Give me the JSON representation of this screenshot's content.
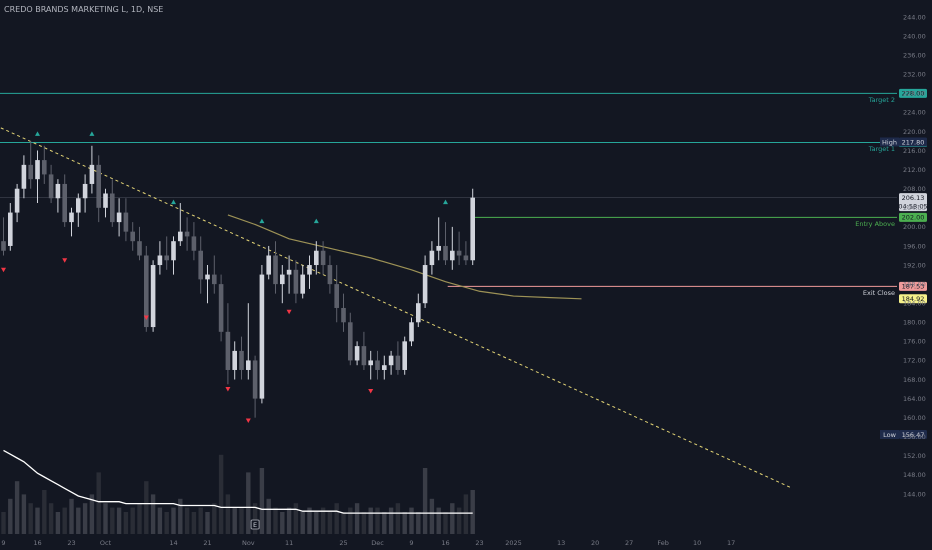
{
  "header": {
    "title": "CREDO BRANDS MARKETING L, 1D, NSE"
  },
  "colors": {
    "background": "#131722",
    "target": "#26a69a",
    "entry": "#4caf50",
    "exit": "#ef9a9a",
    "trend": "#e3d476",
    "ma": "#9d9256",
    "volume_ma": "#ffffff",
    "candle_up": "#d1d4dc",
    "candle_down": "#5d606b",
    "signal_up": "#26a69a",
    "signal_down": "#f23645"
  },
  "chart_data": {
    "type": "candlestick",
    "title": "CREDO BRANDS MARKETING L, 1D, NSE",
    "ylim": [
      142,
      246
    ],
    "y_ticks": [
      144,
      148,
      152,
      156,
      160,
      164,
      168,
      172,
      176,
      180,
      184,
      188,
      192,
      196,
      200,
      204,
      208,
      212,
      216,
      220,
      224,
      228,
      232,
      236,
      240,
      244
    ],
    "x_tick_labels": [
      {
        "i": 0,
        "label": "9"
      },
      {
        "i": 5,
        "label": "16"
      },
      {
        "i": 10,
        "label": "23"
      },
      {
        "i": 15,
        "label": "Oct"
      },
      {
        "i": 25,
        "label": "14"
      },
      {
        "i": 30,
        "label": "21"
      },
      {
        "i": 36,
        "label": "Nov"
      },
      {
        "i": 42,
        "label": "11"
      },
      {
        "i": 50,
        "label": "25"
      },
      {
        "i": 55,
        "label": "Dec"
      },
      {
        "i": 60,
        "label": "9"
      },
      {
        "i": 65,
        "label": "16"
      },
      {
        "i": 70,
        "label": "23"
      },
      {
        "i": 75,
        "label": "2025"
      },
      {
        "i": 82,
        "label": "13"
      },
      {
        "i": 87,
        "label": "20"
      },
      {
        "i": 92,
        "label": "27"
      },
      {
        "i": 97,
        "label": "Feb"
      },
      {
        "i": 102,
        "label": "10"
      },
      {
        "i": 107,
        "label": "17"
      }
    ],
    "candles": [
      {
        "o": 197,
        "h": 202,
        "l": 194,
        "c": 195
      },
      {
        "o": 196,
        "h": 205,
        "l": 195,
        "c": 203
      },
      {
        "o": 203,
        "h": 209,
        "l": 201,
        "c": 208
      },
      {
        "o": 208,
        "h": 215,
        "l": 206,
        "c": 213
      },
      {
        "o": 213,
        "h": 218,
        "l": 208,
        "c": 210
      },
      {
        "o": 210,
        "h": 216,
        "l": 205,
        "c": 214
      },
      {
        "o": 214,
        "h": 217,
        "l": 209,
        "c": 211
      },
      {
        "o": 211,
        "h": 213,
        "l": 205,
        "c": 206
      },
      {
        "o": 206,
        "h": 210,
        "l": 203,
        "c": 209
      },
      {
        "o": 209,
        "h": 211,
        "l": 200,
        "c": 201
      },
      {
        "o": 201,
        "h": 204,
        "l": 198,
        "c": 203
      },
      {
        "o": 203,
        "h": 207,
        "l": 200,
        "c": 206
      },
      {
        "o": 206,
        "h": 211,
        "l": 203,
        "c": 209
      },
      {
        "o": 209,
        "h": 217,
        "l": 207,
        "c": 213
      },
      {
        "o": 213,
        "h": 215,
        "l": 201,
        "c": 204
      },
      {
        "o": 204,
        "h": 208,
        "l": 202,
        "c": 207
      },
      {
        "o": 207,
        "h": 210,
        "l": 200,
        "c": 201
      },
      {
        "o": 201,
        "h": 206,
        "l": 198,
        "c": 203
      },
      {
        "o": 203,
        "h": 206,
        "l": 197,
        "c": 199
      },
      {
        "o": 199,
        "h": 201,
        "l": 195,
        "c": 197
      },
      {
        "o": 197,
        "h": 200,
        "l": 193,
        "c": 194
      },
      {
        "o": 194,
        "h": 196,
        "l": 178,
        "c": 179
      },
      {
        "o": 179,
        "h": 193,
        "l": 178,
        "c": 192
      },
      {
        "o": 192,
        "h": 197,
        "l": 190,
        "c": 194
      },
      {
        "o": 194,
        "h": 198,
        "l": 191,
        "c": 193
      },
      {
        "o": 193,
        "h": 198,
        "l": 190,
        "c": 197
      },
      {
        "o": 197,
        "h": 205,
        "l": 196,
        "c": 199
      },
      {
        "o": 199,
        "h": 202,
        "l": 195,
        "c": 198
      },
      {
        "o": 198,
        "h": 201,
        "l": 193,
        "c": 195
      },
      {
        "o": 195,
        "h": 198,
        "l": 186,
        "c": 189
      },
      {
        "o": 189,
        "h": 192,
        "l": 184,
        "c": 190
      },
      {
        "o": 190,
        "h": 194,
        "l": 186,
        "c": 188
      },
      {
        "o": 188,
        "h": 190,
        "l": 176,
        "c": 178
      },
      {
        "o": 178,
        "h": 184,
        "l": 167,
        "c": 170
      },
      {
        "o": 170,
        "h": 176,
        "l": 168,
        "c": 174
      },
      {
        "o": 174,
        "h": 177,
        "l": 168,
        "c": 170
      },
      {
        "o": 170,
        "h": 184,
        "l": 168,
        "c": 172
      },
      {
        "o": 172,
        "h": 173,
        "l": 160,
        "c": 164
      },
      {
        "o": 164,
        "h": 192,
        "l": 163,
        "c": 190
      },
      {
        "o": 190,
        "h": 196,
        "l": 189,
        "c": 194
      },
      {
        "o": 194,
        "h": 197,
        "l": 186,
        "c": 188
      },
      {
        "o": 188,
        "h": 192,
        "l": 184,
        "c": 190
      },
      {
        "o": 190,
        "h": 194,
        "l": 186,
        "c": 191
      },
      {
        "o": 191,
        "h": 193,
        "l": 184,
        "c": 186
      },
      {
        "o": 186,
        "h": 192,
        "l": 185,
        "c": 190
      },
      {
        "o": 190,
        "h": 194,
        "l": 187,
        "c": 192
      },
      {
        "o": 192,
        "h": 197,
        "l": 190,
        "c": 195
      },
      {
        "o": 195,
        "h": 197,
        "l": 190,
        "c": 192
      },
      {
        "o": 192,
        "h": 194,
        "l": 186,
        "c": 188
      },
      {
        "o": 188,
        "h": 192,
        "l": 180,
        "c": 183
      },
      {
        "o": 183,
        "h": 186,
        "l": 178,
        "c": 180
      },
      {
        "o": 180,
        "h": 182,
        "l": 171,
        "c": 172
      },
      {
        "o": 172,
        "h": 176,
        "l": 171,
        "c": 175
      },
      {
        "o": 175,
        "h": 178,
        "l": 170,
        "c": 171
      },
      {
        "o": 171,
        "h": 174,
        "l": 168,
        "c": 172
      },
      {
        "o": 172,
        "h": 174,
        "l": 168,
        "c": 170
      },
      {
        "o": 170,
        "h": 173,
        "l": 168,
        "c": 171
      },
      {
        "o": 171,
        "h": 174,
        "l": 169,
        "c": 173
      },
      {
        "o": 173,
        "h": 176,
        "l": 169,
        "c": 170
      },
      {
        "o": 170,
        "h": 177,
        "l": 169,
        "c": 176
      },
      {
        "o": 176,
        "h": 181,
        "l": 175,
        "c": 180
      },
      {
        "o": 180,
        "h": 186,
        "l": 179,
        "c": 184
      },
      {
        "o": 184,
        "h": 194,
        "l": 183,
        "c": 192
      },
      {
        "o": 192,
        "h": 197,
        "l": 190,
        "c": 195
      },
      {
        "o": 195,
        "h": 202,
        "l": 193,
        "c": 196
      },
      {
        "o": 196,
        "h": 201,
        "l": 192,
        "c": 193
      },
      {
        "o": 193,
        "h": 200,
        "l": 191,
        "c": 195
      },
      {
        "o": 195,
        "h": 199,
        "l": 192,
        "c": 194
      },
      {
        "o": 194,
        "h": 197,
        "l": 192,
        "c": 193
      },
      {
        "o": 193,
        "h": 208,
        "l": 192,
        "c": 206.13
      }
    ],
    "volumes": [
      5,
      8,
      12,
      9,
      7,
      6,
      10,
      7,
      5,
      6,
      8,
      6,
      7,
      9,
      14,
      7,
      6,
      6,
      5,
      6,
      7,
      12,
      9,
      6,
      5,
      6,
      8,
      6,
      5,
      6,
      5,
      7,
      18,
      9,
      6,
      6,
      14,
      7,
      15,
      8,
      6,
      5,
      6,
      7,
      5,
      6,
      5,
      6,
      5,
      7,
      5,
      6,
      7,
      5,
      6,
      6,
      5,
      6,
      7,
      5,
      6,
      5,
      15,
      8,
      6,
      5,
      7,
      6,
      9,
      10
    ],
    "volume_ma": [
      44,
      42,
      40,
      38,
      35,
      32,
      30,
      28,
      26,
      24,
      22,
      20,
      19,
      18,
      17,
      17,
      17,
      17,
      16,
      16,
      16,
      16,
      16,
      16,
      16,
      16,
      15,
      15,
      15,
      15,
      15,
      15,
      14,
      14,
      14,
      14,
      14,
      14,
      13,
      13,
      13,
      13,
      13,
      13,
      12,
      12,
      12,
      12,
      12,
      12,
      11,
      11,
      11,
      11,
      11,
      11,
      11,
      11,
      11,
      11,
      11,
      11,
      11,
      11,
      11,
      11,
      11,
      11,
      11,
      11
    ],
    "ma_line": [
      {
        "i": 33,
        "v": 202.5
      },
      {
        "i": 37,
        "v": 200.5
      },
      {
        "i": 42,
        "v": 197.5
      },
      {
        "i": 48,
        "v": 195.5
      },
      {
        "i": 54,
        "v": 193.5
      },
      {
        "i": 60,
        "v": 191
      },
      {
        "i": 65,
        "v": 188.5
      },
      {
        "i": 70,
        "v": 186.5
      },
      {
        "i": 75,
        "v": 185.5
      },
      {
        "i": 80,
        "v": 185.2
      },
      {
        "i": 85,
        "v": 184.92
      }
    ],
    "trendline": {
      "start": {
        "i": -2,
        "v": 221.8
      },
      "end": {
        "i": 116,
        "v": 145.2
      }
    },
    "signals_up": [
      {
        "i": 5,
        "v": 219.5
      },
      {
        "i": 13,
        "v": 219.5
      },
      {
        "i": 25,
        "v": 205.2
      },
      {
        "i": 38,
        "v": 201.2
      },
      {
        "i": 46,
        "v": 201.2
      },
      {
        "i": 65,
        "v": 205.2
      }
    ],
    "signals_down": [
      {
        "i": 0,
        "v": 191
      },
      {
        "i": 9,
        "v": 193
      },
      {
        "i": 21,
        "v": 181
      },
      {
        "i": 33,
        "v": 166
      },
      {
        "i": 36,
        "v": 159.4
      },
      {
        "i": 42,
        "v": 182.2
      },
      {
        "i": 54,
        "v": 165.6
      }
    ],
    "levels": [
      {
        "name": "Target 2",
        "value": 228.0,
        "label": "228.00",
        "kind": "target"
      },
      {
        "name": "Target 1",
        "value": 217.7,
        "label": "217.70",
        "kind": "target"
      },
      {
        "name": "Entry Above",
        "value": 202.0,
        "label": "202.00",
        "kind": "entry"
      },
      {
        "name": "Exit Close",
        "value": 187.53,
        "label": "187.53",
        "kind": "exit"
      }
    ],
    "price_markers": [
      {
        "name": "High",
        "value": 217.8,
        "label": "217.80"
      },
      {
        "name": "",
        "value": 184.92,
        "label": "184.92"
      },
      {
        "name": "Low",
        "value": 156.47,
        "label": "156.47"
      }
    ],
    "last_price": {
      "value": 206.13,
      "label": "206.13",
      "countdown": "04:58:05"
    },
    "earnings_marker": {
      "i": 37,
      "text": "E"
    }
  }
}
